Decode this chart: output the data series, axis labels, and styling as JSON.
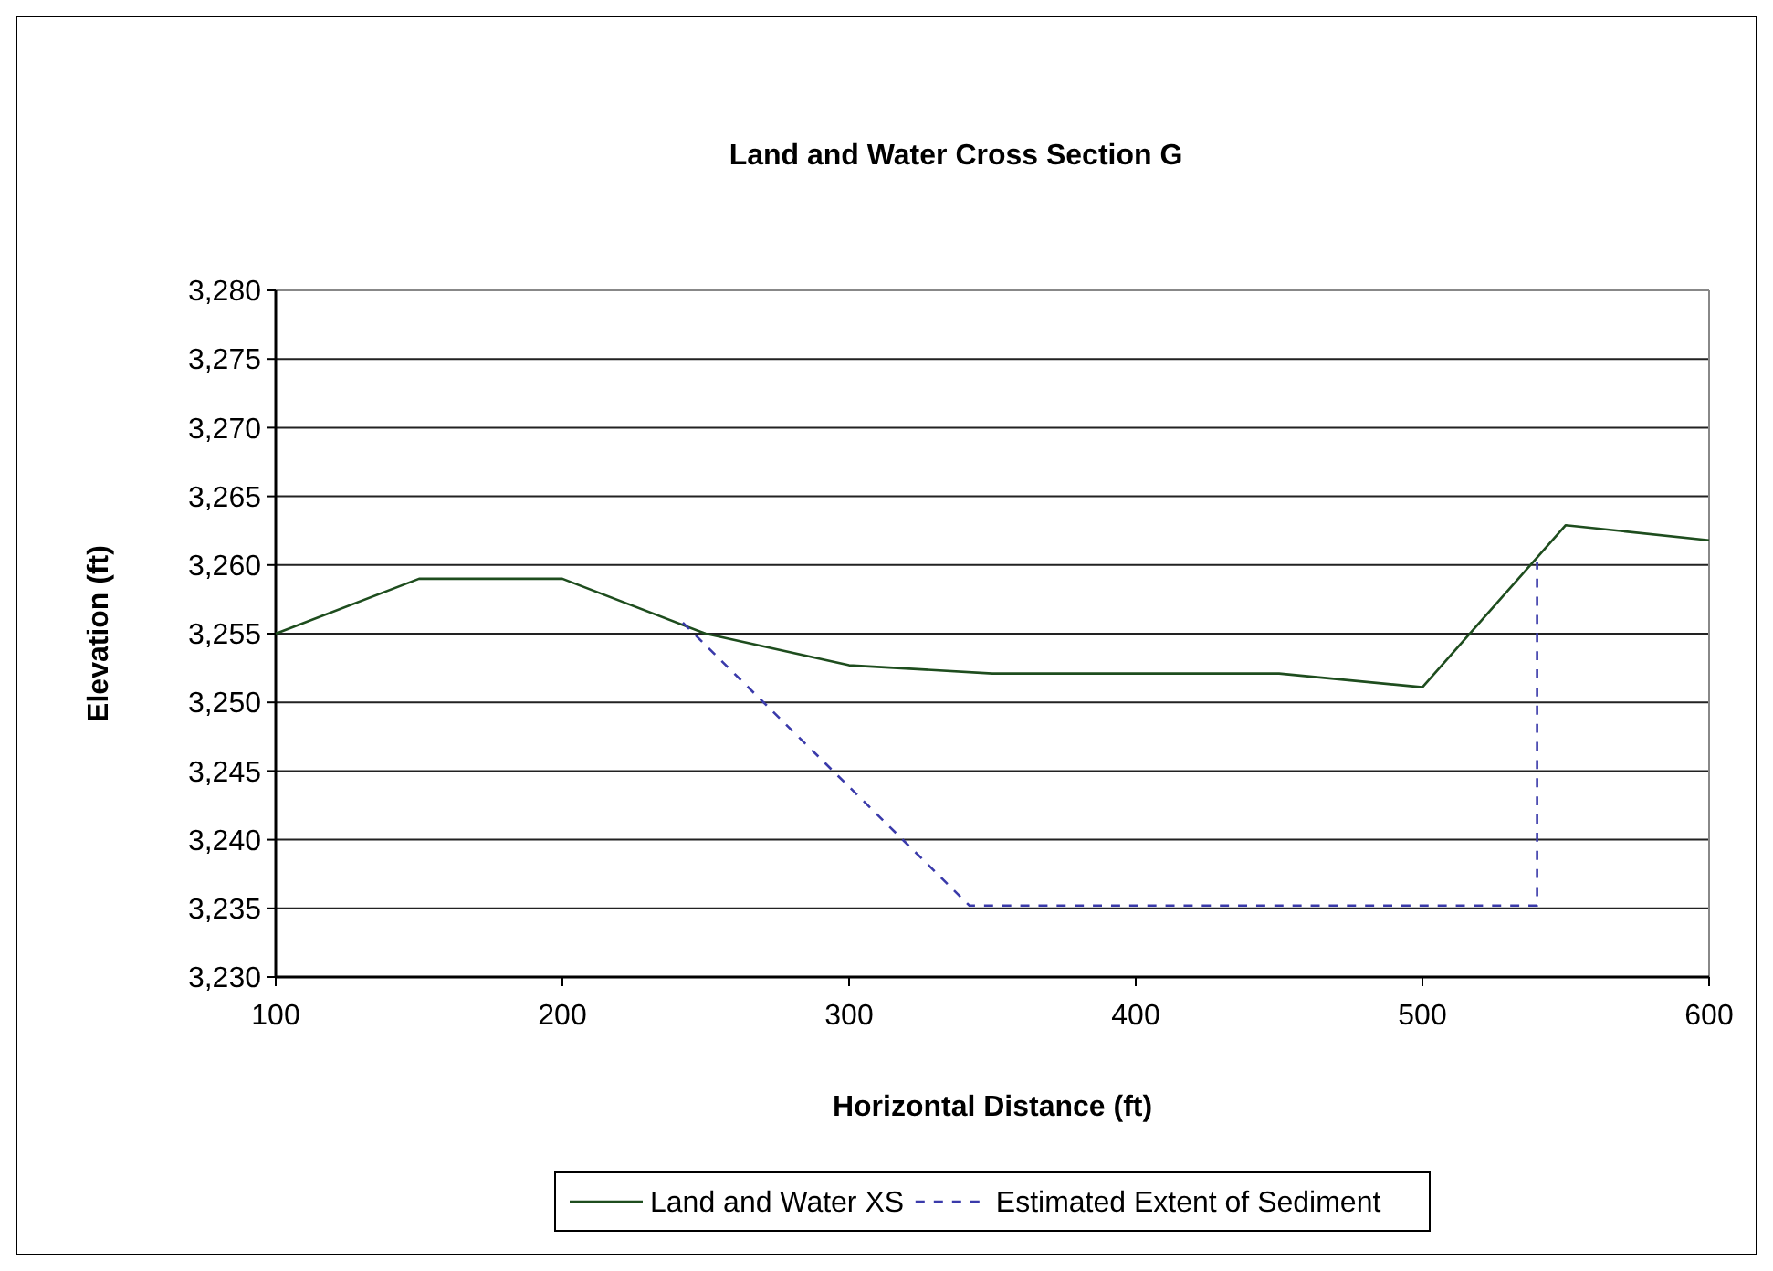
{
  "chart_data": {
    "type": "line",
    "title": "Land and Water Cross Section G",
    "xlabel": "Horizontal Distance (ft)",
    "ylabel": "Elevation (ft)",
    "xlim": [
      100,
      600
    ],
    "xticks": [
      100,
      200,
      300,
      400,
      500,
      600
    ],
    "ylim": [
      3230,
      3280
    ],
    "yticks": [
      {
        "value": 3230,
        "label": "3,230"
      },
      {
        "value": 3235,
        "label": "3,235"
      },
      {
        "value": 3240,
        "label": "3,240"
      },
      {
        "value": 3245,
        "label": "3,245"
      },
      {
        "value": 3250,
        "label": "3,250"
      },
      {
        "value": 3255,
        "label": "3,255"
      },
      {
        "value": 3260,
        "label": "3,260"
      },
      {
        "value": 3265,
        "label": "3,265"
      },
      {
        "value": 3270,
        "label": "3,270"
      },
      {
        "value": 3275,
        "label": "3,275"
      },
      {
        "value": 3280,
        "label": "3,280"
      }
    ],
    "grid": "y",
    "legend": "bottom",
    "marker": "none",
    "series": [
      {
        "name": "Land and Water XS",
        "color": "#1e4d1e",
        "line_style": "solid",
        "x": [
          100,
          150,
          200,
          250,
          300,
          350,
          450,
          500,
          550,
          600
        ],
        "values": [
          3255,
          3259,
          3259,
          3255,
          3252.7,
          3252.1,
          3252.1,
          3251.1,
          3262.9,
          3261.8
        ]
      },
      {
        "name": "Estimated Extent of Sediment",
        "color": "#3a3aaa",
        "line_style": "dashed",
        "x": [
          242,
          342,
          540,
          540
        ],
        "values": [
          3255.8,
          3235.2,
          3235.2,
          3260.2
        ]
      }
    ]
  }
}
